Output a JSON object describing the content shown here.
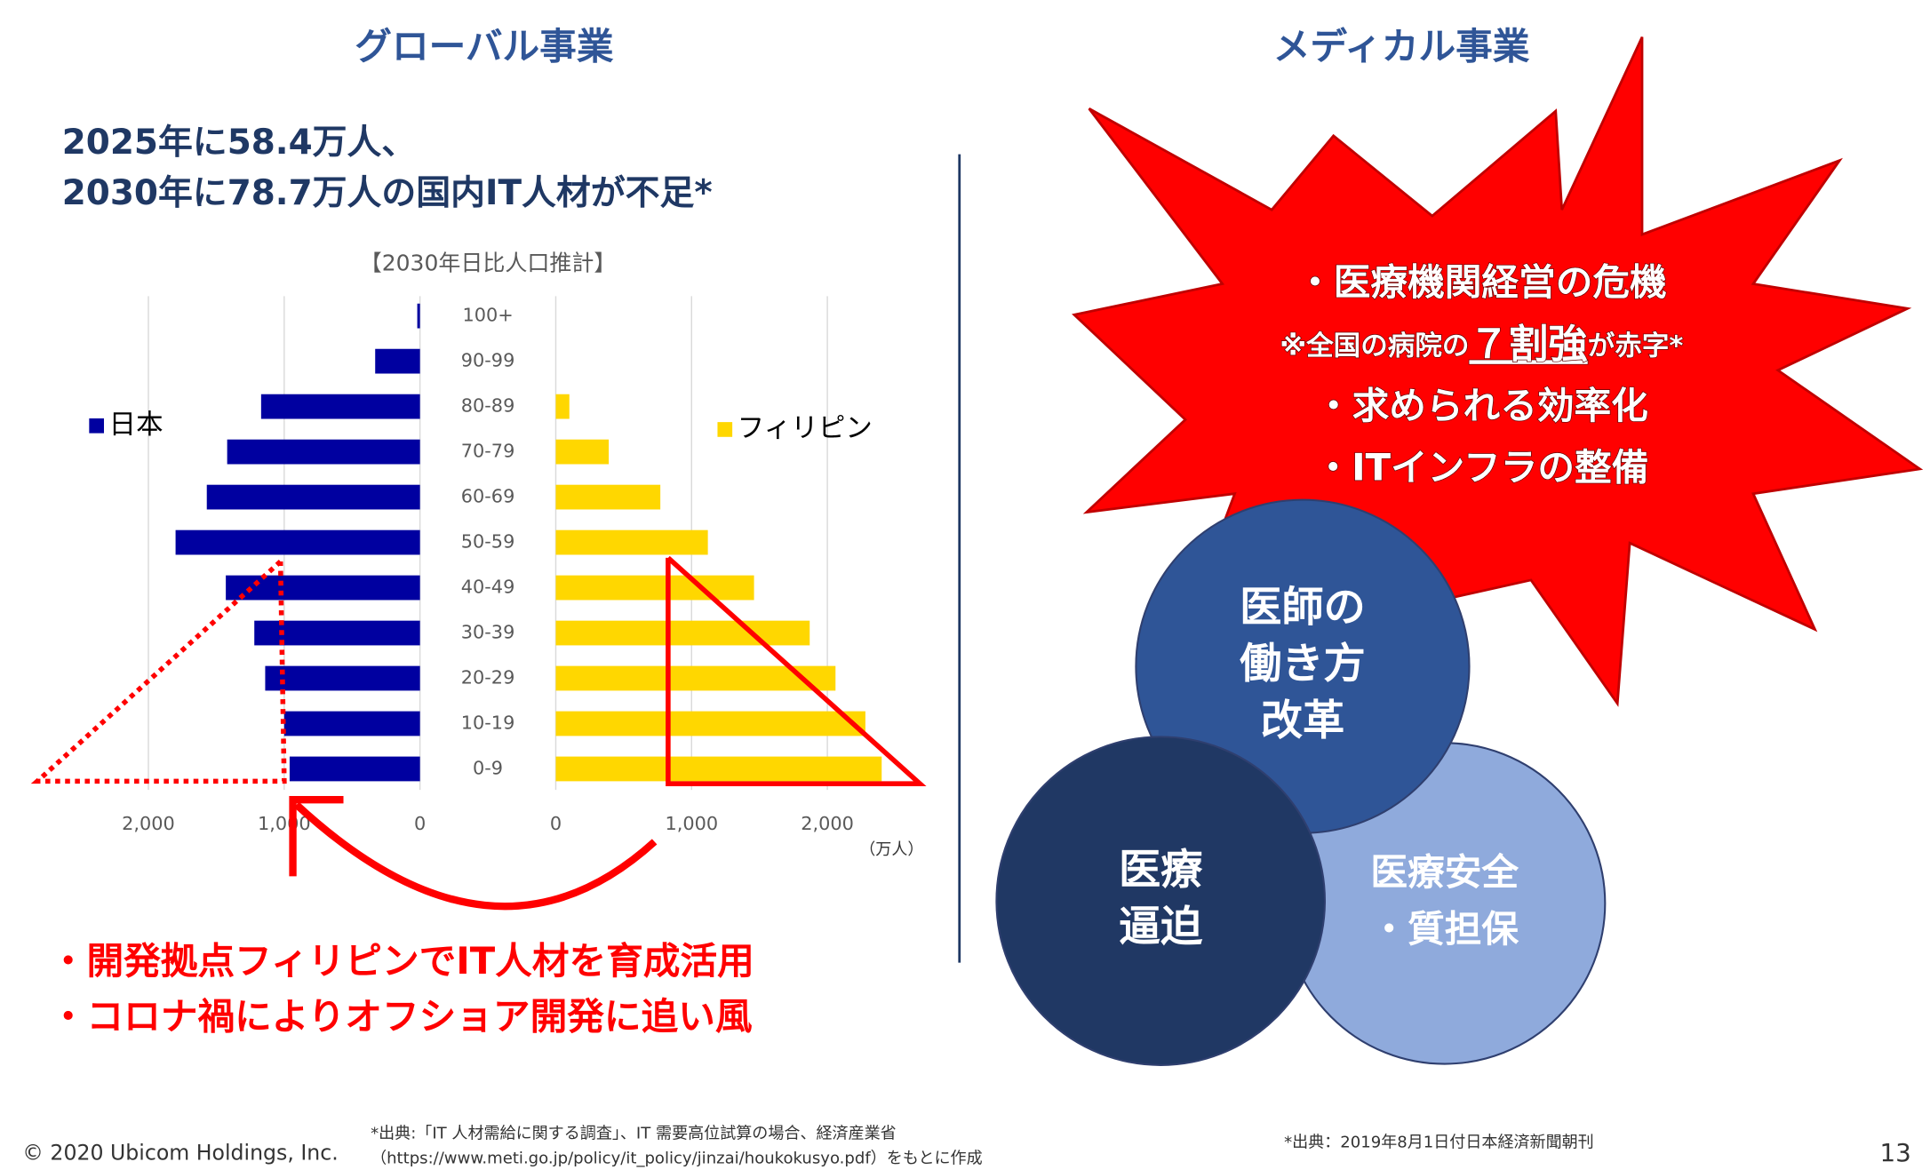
{
  "headings": {
    "left": "グローバル事業",
    "right": "メディカル事業"
  },
  "headline": [
    "2025年に58.4万人、",
    "2030年に78.7万人の国内IT人材が不足*"
  ],
  "chart_data": {
    "type": "pyramid",
    "title": "【2030年日比人口推計】",
    "categories": [
      "100+",
      "90-99",
      "80-89",
      "70-79",
      "60-69",
      "50-59",
      "40-49",
      "30-39",
      "20-29",
      "10-19",
      "0-9"
    ],
    "series": [
      {
        "name": "日本",
        "color": "#0000a0",
        "side": "left",
        "values": [
          20,
          330,
          1170,
          1420,
          1570,
          1800,
          1430,
          1220,
          1140,
          1000,
          960
        ]
      },
      {
        "name": "フィリピン",
        "color": "#ffd700",
        "side": "right",
        "values": [
          0,
          0,
          100,
          390,
          770,
          1120,
          1460,
          1870,
          2060,
          2280,
          2400
        ]
      }
    ],
    "xlim": [
      0,
      2500
    ],
    "xticks": [
      0,
      {
        "value": 1000,
        "label": "1,000"
      },
      {
        "value": 2000,
        "label": "2,000"
      }
    ],
    "xlabel": "（万人）",
    "grid": true
  },
  "bullets": [
    "・開発拠点フィリピンでIT人材を育成活用",
    "・コロナ禍によりオフショア開発に追い風"
  ],
  "star": {
    "line1": "・医療機関経営の危機",
    "note": {
      "before": "※全国の病院の",
      "emphasis": "７割強",
      "after": "が赤字*"
    },
    "line3": "・求められる効率化",
    "line4": "・ITインフラの整備"
  },
  "circles": [
    {
      "lines": [
        "医療安全",
        "・質担保"
      ]
    },
    {
      "lines": [
        "医師の",
        "働き方",
        "改革"
      ]
    },
    {
      "lines": [
        "医療",
        "逼迫"
      ]
    }
  ],
  "footer": {
    "copyright": "© 2020 Ubicom Holdings, Inc.",
    "source_left": [
      "*出典:「IT 人材需給に関する調査」、IT 需要高位試算の場合、経済産業省",
      "（https://www.meti.go.jp/policy/it_policy/jinzai/houkokusyo.pdf）をもとに作成"
    ],
    "source_right": "*出典：2019年8月1日付日本経済新聞朝刊",
    "page": "13"
  }
}
